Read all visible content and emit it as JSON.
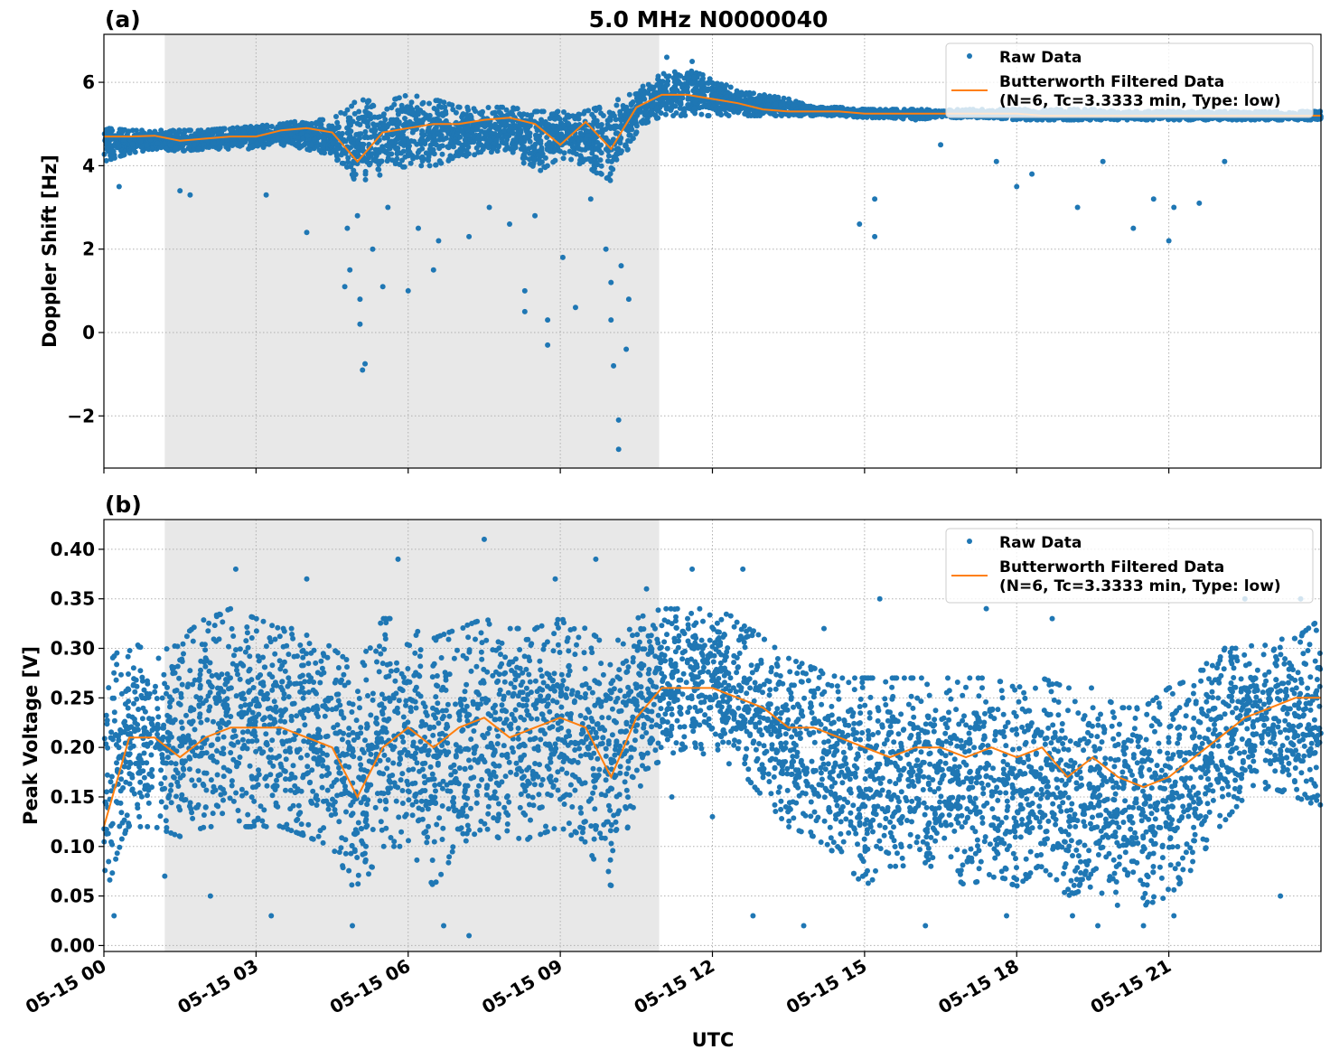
{
  "title": "5.0 MHz N0000040",
  "xlabel": "UTC",
  "colors": {
    "raw": "#1f77b4",
    "filtered": "#ff7f0e",
    "shade": "#e8e8e8",
    "grid": "#b0b0b0"
  },
  "legend": {
    "raw": "Raw Data",
    "filtered_line1": "Butterworth Filtered Data",
    "filtered_line2": "(N=6, Tc=3.3333 min, Type: low)",
    "placement": "upper-right"
  },
  "x_ticks": [
    0,
    3,
    6,
    9,
    12,
    15,
    18,
    21
  ],
  "x_tick_labels": [
    "05-15 00",
    "05-15 03",
    "05-15 06",
    "05-15 09",
    "05-15 12",
    "05-15 15",
    "05-15 18",
    "05-15 21"
  ],
  "chart_data": [
    {
      "type": "scatter",
      "panel_label": "(a)",
      "ylabel": "Doppler Shift [Hz]",
      "xlim": [
        0,
        24
      ],
      "ylim": [
        -3.25,
        7.15
      ],
      "grid": true,
      "shaded_x_range": [
        1.2,
        10.95
      ],
      "y_ticks": [
        -2,
        0,
        2,
        4,
        6
      ],
      "y_tick_labels": [
        "−2",
        "0",
        "2",
        "4",
        "6"
      ],
      "x_hours": [
        0,
        0.5,
        1,
        1.5,
        2,
        2.5,
        3,
        3.5,
        4,
        4.5,
        5,
        5.5,
        6,
        6.5,
        7,
        7.5,
        8,
        8.5,
        9,
        9.5,
        10,
        10.5,
        11,
        11.5,
        12,
        12.5,
        13,
        13.5,
        14,
        14.5,
        15,
        15.5,
        16,
        16.5,
        17,
        17.5,
        18,
        18.5,
        19,
        19.5,
        20,
        20.5,
        21,
        21.5,
        22,
        22.5,
        23,
        23.5,
        24
      ],
      "filtered": [
        4.7,
        4.7,
        4.72,
        4.6,
        4.65,
        4.7,
        4.7,
        4.85,
        4.9,
        4.8,
        4.1,
        4.8,
        4.9,
        5.0,
        5.0,
        5.1,
        5.15,
        5.0,
        4.5,
        5.05,
        4.4,
        5.4,
        5.7,
        5.7,
        5.6,
        5.5,
        5.35,
        5.3,
        5.3,
        5.3,
        5.25,
        5.25,
        5.25,
        5.25,
        5.25,
        5.25,
        5.25,
        5.2,
        5.2,
        5.2,
        5.2,
        5.2,
        5.2,
        5.2,
        5.2,
        5.2,
        5.2,
        5.2,
        5.2
      ],
      "raw_low": [
        4.1,
        4.3,
        4.4,
        4.35,
        4.4,
        4.4,
        4.4,
        4.5,
        4.4,
        4.2,
        3.6,
        3.8,
        4.0,
        4.0,
        4.2,
        4.3,
        4.4,
        3.8,
        4.2,
        4.0,
        3.6,
        4.8,
        5.2,
        5.2,
        5.2,
        5.2,
        5.2,
        5.2,
        5.2,
        5.2,
        5.15,
        5.15,
        5.1,
        5.15,
        5.15,
        5.15,
        5.1,
        5.1,
        5.1,
        5.1,
        5.1,
        5.1,
        5.1,
        5.1,
        5.1,
        5.1,
        5.1,
        5.1,
        5.1
      ],
      "raw_high": [
        4.9,
        4.85,
        4.85,
        4.85,
        4.85,
        4.9,
        4.95,
        5.0,
        5.1,
        5.1,
        5.6,
        5.5,
        5.7,
        5.6,
        5.4,
        5.4,
        5.4,
        5.3,
        5.3,
        5.3,
        5.5,
        5.8,
        6.2,
        6.3,
        6.1,
        5.8,
        5.7,
        5.6,
        5.4,
        5.4,
        5.35,
        5.35,
        5.35,
        5.35,
        5.35,
        5.35,
        5.35,
        5.35,
        5.35,
        5.35,
        5.3,
        5.3,
        5.3,
        5.3,
        5.3,
        5.3,
        5.3,
        5.3,
        5.3
      ],
      "raw_outliers": [
        [
          0.3,
          3.5
        ],
        [
          1.5,
          3.4
        ],
        [
          1.7,
          3.3
        ],
        [
          3.2,
          3.3
        ],
        [
          4.0,
          2.4
        ],
        [
          4.75,
          1.1
        ],
        [
          4.85,
          1.5
        ],
        [
          5.05,
          0.8
        ],
        [
          5.1,
          -0.9
        ],
        [
          5.15,
          -0.75
        ],
        [
          5.05,
          0.2
        ],
        [
          5.3,
          2.0
        ],
        [
          5.5,
          1.1
        ],
        [
          6.0,
          1.0
        ],
        [
          6.5,
          1.5
        ],
        [
          7.2,
          2.3
        ],
        [
          8.3,
          1.0
        ],
        [
          8.3,
          0.5
        ],
        [
          8.75,
          0.3
        ],
        [
          8.75,
          -0.3
        ],
        [
          9.3,
          0.6
        ],
        [
          9.05,
          1.8
        ],
        [
          10.0,
          0.3
        ],
        [
          10.05,
          -0.8
        ],
        [
          10.15,
          -2.1
        ],
        [
          10.15,
          -2.8
        ],
        [
          10.3,
          -0.4
        ],
        [
          10.0,
          1.2
        ],
        [
          10.35,
          0.8
        ],
        [
          4.8,
          2.5
        ],
        [
          5.0,
          2.8
        ],
        [
          5.6,
          3.0
        ],
        [
          6.2,
          2.5
        ],
        [
          6.6,
          2.2
        ],
        [
          7.6,
          3.0
        ],
        [
          8.0,
          2.6
        ],
        [
          8.5,
          2.8
        ],
        [
          9.6,
          3.2
        ],
        [
          9.9,
          2.0
        ],
        [
          10.2,
          1.6
        ],
        [
          14.9,
          2.6
        ],
        [
          15.2,
          2.3
        ],
        [
          15.2,
          3.2
        ],
        [
          18.0,
          3.5
        ],
        [
          19.2,
          3.0
        ],
        [
          20.3,
          2.5
        ],
        [
          20.7,
          3.2
        ],
        [
          21.0,
          2.2
        ],
        [
          21.1,
          3.0
        ],
        [
          21.6,
          3.1
        ],
        [
          22.1,
          4.1
        ],
        [
          16.5,
          4.5
        ],
        [
          17.6,
          4.1
        ],
        [
          18.3,
          3.8
        ],
        [
          19.7,
          4.1
        ],
        [
          11.1,
          6.6
        ],
        [
          11.6,
          6.5
        ]
      ]
    },
    {
      "type": "scatter",
      "panel_label": "(b)",
      "ylabel": "Peak Voltage [V]",
      "xlim": [
        0,
        24
      ],
      "ylim": [
        -0.006,
        0.43
      ],
      "grid": true,
      "shaded_x_range": [
        1.2,
        10.95
      ],
      "y_ticks": [
        0,
        0.05,
        0.1,
        0.15,
        0.2,
        0.25,
        0.3,
        0.35,
        0.4
      ],
      "y_tick_labels": [
        "0.00",
        "0.05",
        "0.10",
        "0.15",
        "0.20",
        "0.25",
        "0.30",
        "0.35",
        "0.40"
      ],
      "x_hours": [
        0,
        0.5,
        1,
        1.5,
        2,
        2.5,
        3,
        3.5,
        4,
        4.5,
        5,
        5.5,
        6,
        6.5,
        7,
        7.5,
        8,
        8.5,
        9,
        9.5,
        10,
        10.5,
        11,
        11.5,
        12,
        12.5,
        13,
        13.5,
        14,
        14.5,
        15,
        15.5,
        16,
        16.5,
        17,
        17.5,
        18,
        18.5,
        19,
        19.5,
        20,
        20.5,
        21,
        21.5,
        22,
        22.5,
        23,
        23.5,
        24
      ],
      "filtered": [
        0.12,
        0.21,
        0.21,
        0.19,
        0.21,
        0.22,
        0.22,
        0.22,
        0.21,
        0.2,
        0.15,
        0.2,
        0.22,
        0.2,
        0.22,
        0.23,
        0.21,
        0.22,
        0.23,
        0.22,
        0.17,
        0.23,
        0.26,
        0.26,
        0.26,
        0.25,
        0.24,
        0.22,
        0.22,
        0.21,
        0.2,
        0.19,
        0.2,
        0.2,
        0.19,
        0.2,
        0.19,
        0.2,
        0.17,
        0.19,
        0.17,
        0.16,
        0.17,
        0.19,
        0.21,
        0.23,
        0.24,
        0.25,
        0.25
      ],
      "raw_low": [
        0.05,
        0.12,
        0.12,
        0.11,
        0.12,
        0.12,
        0.12,
        0.12,
        0.11,
        0.1,
        0.05,
        0.1,
        0.1,
        0.06,
        0.1,
        0.12,
        0.1,
        0.11,
        0.12,
        0.1,
        0.06,
        0.15,
        0.19,
        0.2,
        0.19,
        0.18,
        0.15,
        0.12,
        0.11,
        0.09,
        0.06,
        0.08,
        0.08,
        0.08,
        0.06,
        0.07,
        0.06,
        0.08,
        0.05,
        0.06,
        0.04,
        0.04,
        0.05,
        0.08,
        0.12,
        0.15,
        0.16,
        0.15,
        0.14
      ],
      "raw_high": [
        0.28,
        0.31,
        0.29,
        0.31,
        0.33,
        0.34,
        0.33,
        0.32,
        0.32,
        0.3,
        0.28,
        0.33,
        0.33,
        0.31,
        0.32,
        0.33,
        0.32,
        0.32,
        0.33,
        0.32,
        0.3,
        0.33,
        0.34,
        0.34,
        0.34,
        0.33,
        0.31,
        0.29,
        0.28,
        0.27,
        0.27,
        0.27,
        0.27,
        0.27,
        0.27,
        0.27,
        0.26,
        0.27,
        0.26,
        0.26,
        0.24,
        0.24,
        0.26,
        0.27,
        0.3,
        0.3,
        0.31,
        0.31,
        0.33
      ],
      "raw_outliers": [
        [
          0.2,
          0.03
        ],
        [
          1.2,
          0.07
        ],
        [
          2.1,
          0.05
        ],
        [
          2.6,
          0.38
        ],
        [
          3.3,
          0.03
        ],
        [
          4.0,
          0.37
        ],
        [
          4.9,
          0.02
        ],
        [
          5.8,
          0.39
        ],
        [
          6.7,
          0.02
        ],
        [
          7.2,
          0.01
        ],
        [
          7.5,
          0.41
        ],
        [
          8.9,
          0.37
        ],
        [
          9.7,
          0.39
        ],
        [
          10.7,
          0.36
        ],
        [
          11.6,
          0.38
        ],
        [
          12.6,
          0.38
        ],
        [
          12.8,
          0.03
        ],
        [
          13.8,
          0.02
        ],
        [
          15.3,
          0.35
        ],
        [
          17.4,
          0.34
        ],
        [
          18.7,
          0.33
        ],
        [
          19.6,
          0.02
        ],
        [
          20.5,
          0.02
        ],
        [
          21.1,
          0.03
        ],
        [
          22.5,
          0.35
        ],
        [
          23.6,
          0.35
        ],
        [
          16.2,
          0.02
        ],
        [
          17.8,
          0.03
        ],
        [
          14.2,
          0.32
        ],
        [
          12.0,
          0.13
        ],
        [
          11.2,
          0.15
        ],
        [
          23.2,
          0.05
        ],
        [
          19.1,
          0.03
        ]
      ]
    }
  ]
}
